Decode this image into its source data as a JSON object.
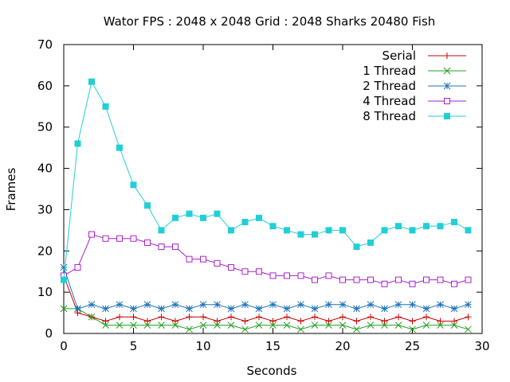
{
  "chart_data": {
    "type": "line",
    "title": "Wator FPS : 2048 x 2048 Grid : 2048 Sharks 20480 Fish",
    "xlabel": "Seconds",
    "ylabel": "Frames",
    "xlim": [
      0,
      30
    ],
    "ylim": [
      0,
      70
    ],
    "xticks": [
      0,
      5,
      10,
      15,
      20,
      25,
      30
    ],
    "yticks": [
      0,
      10,
      20,
      30,
      40,
      50,
      60,
      70
    ],
    "grid": false,
    "legend_position": "top-right",
    "x": [
      0,
      1,
      2,
      3,
      4,
      5,
      6,
      7,
      8,
      9,
      10,
      11,
      12,
      13,
      14,
      15,
      16,
      17,
      18,
      19,
      20,
      21,
      22,
      23,
      24,
      25,
      26,
      27,
      28,
      29
    ],
    "series": [
      {
        "name": "Serial",
        "color": "#cc0000",
        "marker": "plus",
        "values": [
          14,
          5,
          4,
          3,
          4,
          4,
          3,
          4,
          3,
          4,
          4,
          3,
          4,
          3,
          4,
          3,
          4,
          3,
          4,
          3,
          4,
          3,
          4,
          3,
          4,
          3,
          4,
          3,
          3,
          4
        ]
      },
      {
        "name": "1 Thread",
        "color": "#22a022",
        "marker": "cross",
        "values": [
          6,
          6,
          4,
          2,
          2,
          2,
          2,
          2,
          2,
          1,
          2,
          2,
          2,
          1,
          2,
          2,
          2,
          1,
          2,
          2,
          2,
          1,
          2,
          2,
          2,
          1,
          2,
          2,
          2,
          1
        ]
      },
      {
        "name": "2 Thread",
        "color": "#1e73be",
        "marker": "star",
        "values": [
          16,
          6,
          7,
          6,
          7,
          6,
          7,
          6,
          7,
          6,
          7,
          7,
          6,
          7,
          6,
          7,
          6,
          7,
          6,
          7,
          7,
          6,
          7,
          6,
          7,
          7,
          6,
          7,
          6,
          7
        ]
      },
      {
        "name": "4 Thread",
        "color": "#aa22cc",
        "marker": "open-square",
        "values": [
          14,
          16,
          24,
          23,
          23,
          23,
          22,
          21,
          21,
          18,
          18,
          17,
          16,
          15,
          15,
          14,
          14,
          14,
          13,
          14,
          13,
          13,
          13,
          12,
          13,
          12,
          13,
          13,
          12,
          13
        ]
      },
      {
        "name": "8 Thread",
        "color": "#22cfd6",
        "marker": "filled-square",
        "values": [
          13,
          46,
          61,
          55,
          45,
          36,
          31,
          25,
          28,
          29,
          28,
          29,
          25,
          27,
          28,
          26,
          25,
          24,
          24,
          25,
          25,
          21,
          22,
          25,
          26,
          25,
          26,
          26,
          27,
          25
        ]
      }
    ]
  }
}
